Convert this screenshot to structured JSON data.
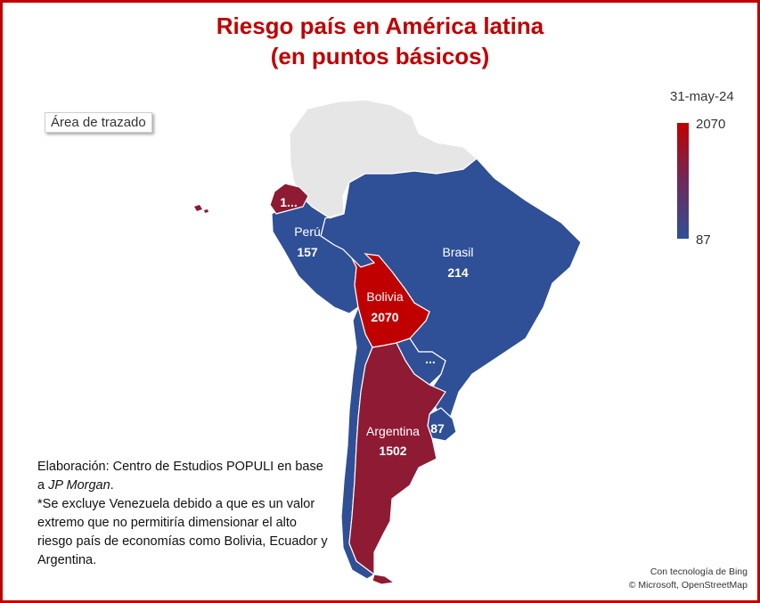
{
  "title_line1": "Riesgo país en América latina",
  "title_line2": "(en puntos básicos)",
  "plot_area_label": "Área de trazado",
  "legend": {
    "date": "31-may-24",
    "max_label": "2070",
    "min_label": "87",
    "max_color": "#c00000",
    "min_color": "#2f4f96"
  },
  "note": {
    "line1_prefix": "Elaboración: Centro de Estudios POPULI en base a ",
    "line1_source": "JP Morgan",
    "line1_suffix": ".",
    "line2": "*Se excluye Venezuela debido a que es un valor extremo que no permitiría dimensionar el alto riesgo país de economías como Bolivia, Ecuador y Argentina."
  },
  "credit": {
    "line1": "Con tecnología de Bing",
    "line2": "© Microsoft, OpenStreetMap"
  },
  "map_data": {
    "type": "choropleth",
    "value_range": [
      87,
      2070
    ],
    "countries": [
      {
        "name": "Ecuador",
        "label_name": "",
        "label_value": "1...",
        "color": "#8e1a33"
      },
      {
        "name": "Perú",
        "label_name": "Perú",
        "label_value": "157",
        "value": 157,
        "color": "#2f4f96"
      },
      {
        "name": "Brasil",
        "label_name": "Brasil",
        "label_value": "214",
        "value": 214,
        "color": "#2f4f96"
      },
      {
        "name": "Bolivia",
        "label_name": "Bolivia",
        "label_value": "2070",
        "value": 2070,
        "color": "#c00000"
      },
      {
        "name": "Paraguay",
        "label_name": "",
        "label_value": "...",
        "color": "#2f4f96"
      },
      {
        "name": "Uruguay",
        "label_name": "",
        "label_value": "87",
        "value": 87,
        "color": "#2f4f96"
      },
      {
        "name": "Argentina",
        "label_name": "Argentina",
        "label_value": "1502",
        "value": 1502,
        "color": "#8e1a33"
      },
      {
        "name": "Chile",
        "label_name": "",
        "label_value": "",
        "color": "#2f4f96"
      },
      {
        "name": "Colombia / Venezuela / Guayanas",
        "label_name": "",
        "label_value": "",
        "color": "#e6e6e6"
      }
    ]
  }
}
